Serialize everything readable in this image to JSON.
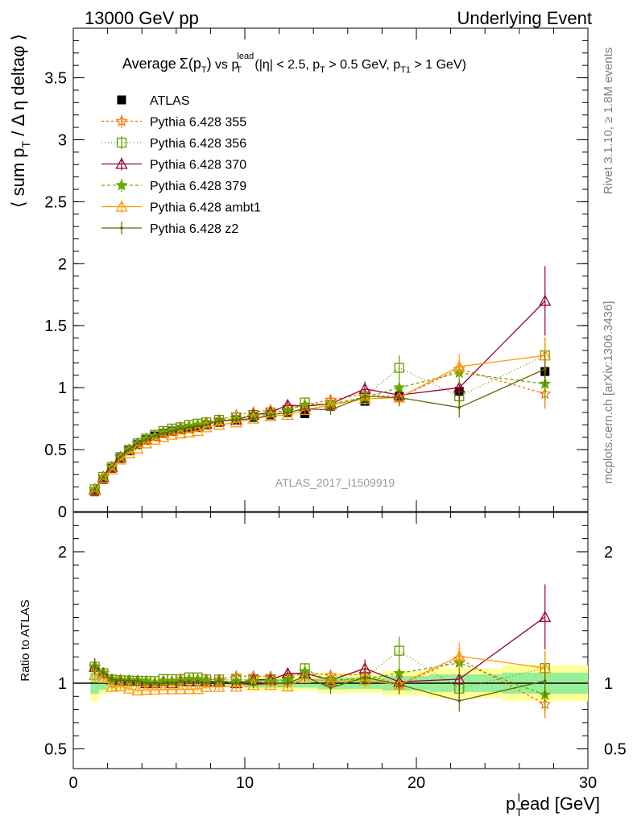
{
  "header": {
    "left": "13000 GeV pp",
    "right": "Underlying Event"
  },
  "side_labels": {
    "rivet": "Rivet 3.1.10, ≥ 1.8M events",
    "mcplots": "mcplots.cern.ch [arXiv:1306.3436]"
  },
  "watermark": "ATLAS_2017_I1509919",
  "chart_data": [
    {
      "type": "line",
      "title_parts": [
        "Average",
        "Σ(p",
        "T",
        ")",
        " vs p",
        "lead",
        "T",
        " (|η| < 2.5, p",
        "T",
        " > 0.5 GeV, p",
        "T1",
        " > 1 GeV)"
      ],
      "ylabel_parts": [
        "⟨ sum p",
        "T",
        " / Δ η deltaφ ⟩"
      ],
      "xlim": [
        0,
        30
      ],
      "ylim": [
        0,
        3.9
      ],
      "y_ticks": [
        "0",
        "0.5",
        "1",
        "1.5",
        "2",
        "2.5",
        "3",
        "3.5"
      ],
      "x": [
        1.25,
        1.75,
        2.25,
        2.75,
        3.25,
        3.75,
        4.25,
        4.75,
        5.25,
        5.75,
        6.25,
        6.75,
        7.25,
        7.75,
        8.5,
        9.5,
        10.5,
        11.5,
        12.5,
        13.5,
        15.0,
        17.0,
        19.0,
        22.5,
        27.5
      ],
      "series": [
        {
          "name": "ATLAS",
          "color": "#000000",
          "marker": "square-filled",
          "dash": "none",
          "values": [
            0.16,
            0.26,
            0.35,
            0.43,
            0.49,
            0.54,
            0.58,
            0.61,
            0.63,
            0.65,
            0.66,
            0.67,
            0.68,
            0.7,
            0.72,
            0.74,
            0.76,
            0.78,
            0.8,
            0.79,
            0.85,
            0.89,
            0.93,
            0.97,
            1.13
          ],
          "errors": [
            0.01,
            0.01,
            0.01,
            0.01,
            0.01,
            0.01,
            0.01,
            0.01,
            0.01,
            0.01,
            0.01,
            0.01,
            0.01,
            0.01,
            0.01,
            0.01,
            0.02,
            0.02,
            0.02,
            0.02,
            0.03,
            0.03,
            0.04,
            0.05,
            0.07
          ]
        },
        {
          "name": "Pythia 6.428 355",
          "color": "#ff6600",
          "marker": "star-open",
          "dash": "3,3",
          "values": [
            0.18,
            0.28,
            0.36,
            0.44,
            0.5,
            0.55,
            0.58,
            0.61,
            0.64,
            0.66,
            0.68,
            0.69,
            0.7,
            0.72,
            0.74,
            0.78,
            0.8,
            0.82,
            0.84,
            0.86,
            0.9,
            0.95,
            0.92,
            1.15,
            0.95
          ],
          "errors": [
            0.01,
            0.01,
            0.01,
            0.01,
            0.01,
            0.01,
            0.01,
            0.01,
            0.01,
            0.01,
            0.01,
            0.01,
            0.01,
            0.01,
            0.02,
            0.02,
            0.02,
            0.02,
            0.03,
            0.03,
            0.04,
            0.05,
            0.06,
            0.08,
            0.12
          ]
        },
        {
          "name": "Pythia 6.428 356",
          "color": "#669900",
          "marker": "square-open",
          "dash": "1,3",
          "values": [
            0.18,
            0.28,
            0.36,
            0.44,
            0.5,
            0.55,
            0.59,
            0.62,
            0.65,
            0.67,
            0.68,
            0.7,
            0.71,
            0.72,
            0.74,
            0.76,
            0.78,
            0.8,
            0.82,
            0.88,
            0.86,
            0.93,
            1.16,
            0.93,
            1.26
          ],
          "errors": [
            0.01,
            0.01,
            0.01,
            0.01,
            0.01,
            0.01,
            0.01,
            0.01,
            0.01,
            0.01,
            0.01,
            0.01,
            0.01,
            0.01,
            0.02,
            0.02,
            0.02,
            0.02,
            0.03,
            0.03,
            0.04,
            0.06,
            0.1,
            0.1,
            0.14
          ]
        },
        {
          "name": "Pythia 6.428 370",
          "color": "#990033",
          "marker": "triangle-open",
          "dash": "none",
          "values": [
            0.18,
            0.28,
            0.36,
            0.44,
            0.5,
            0.55,
            0.58,
            0.61,
            0.64,
            0.65,
            0.67,
            0.68,
            0.69,
            0.71,
            0.73,
            0.74,
            0.78,
            0.8,
            0.86,
            0.85,
            0.87,
            0.99,
            0.94,
            1.0,
            1.7
          ],
          "errors": [
            0.01,
            0.01,
            0.01,
            0.01,
            0.01,
            0.01,
            0.01,
            0.01,
            0.01,
            0.01,
            0.01,
            0.01,
            0.01,
            0.01,
            0.02,
            0.02,
            0.02,
            0.02,
            0.03,
            0.03,
            0.04,
            0.06,
            0.08,
            0.12,
            0.28
          ]
        },
        {
          "name": "Pythia 6.428 379",
          "color": "#66aa00",
          "marker": "star-filled",
          "dash": "4,3",
          "values": [
            0.18,
            0.28,
            0.36,
            0.44,
            0.5,
            0.55,
            0.59,
            0.61,
            0.64,
            0.66,
            0.67,
            0.69,
            0.7,
            0.71,
            0.73,
            0.75,
            0.77,
            0.79,
            0.82,
            0.86,
            0.87,
            0.92,
            1.0,
            1.12,
            1.03
          ],
          "errors": [
            0.01,
            0.01,
            0.01,
            0.01,
            0.01,
            0.01,
            0.01,
            0.01,
            0.01,
            0.01,
            0.01,
            0.01,
            0.01,
            0.01,
            0.02,
            0.02,
            0.02,
            0.02,
            0.03,
            0.03,
            0.04,
            0.05,
            0.07,
            0.09,
            0.14
          ]
        },
        {
          "name": "Pythia 6.428 ambt1",
          "color": "#ff9900",
          "marker": "triangle-open",
          "dash": "none",
          "values": [
            0.17,
            0.27,
            0.34,
            0.42,
            0.47,
            0.51,
            0.55,
            0.58,
            0.6,
            0.62,
            0.63,
            0.64,
            0.65,
            0.68,
            0.7,
            0.72,
            0.75,
            0.77,
            0.78,
            0.82,
            0.86,
            0.91,
            0.92,
            1.17,
            1.26
          ],
          "errors": [
            0.01,
            0.01,
            0.01,
            0.01,
            0.01,
            0.01,
            0.01,
            0.01,
            0.01,
            0.01,
            0.01,
            0.01,
            0.01,
            0.01,
            0.02,
            0.02,
            0.02,
            0.02,
            0.03,
            0.03,
            0.04,
            0.05,
            0.07,
            0.1,
            0.15
          ]
        },
        {
          "name": "Pythia 6.428 z2",
          "color": "#666600",
          "marker": "dot",
          "dash": "none",
          "values": [
            0.18,
            0.28,
            0.36,
            0.44,
            0.5,
            0.55,
            0.58,
            0.61,
            0.63,
            0.65,
            0.67,
            0.68,
            0.69,
            0.7,
            0.73,
            0.74,
            0.75,
            0.78,
            0.8,
            0.83,
            0.82,
            0.93,
            0.92,
            0.84,
            1.15
          ],
          "errors": [
            0.01,
            0.01,
            0.01,
            0.01,
            0.01,
            0.01,
            0.01,
            0.01,
            0.01,
            0.01,
            0.01,
            0.01,
            0.01,
            0.01,
            0.02,
            0.02,
            0.02,
            0.02,
            0.03,
            0.03,
            0.04,
            0.05,
            0.07,
            0.08,
            0.14
          ]
        }
      ]
    },
    {
      "type": "line",
      "ylabel": "Ratio to ATLAS",
      "xlabel_parts": [
        "p",
        "T",
        "l",
        "ead [GeV]"
      ],
      "xlim": [
        0,
        30
      ],
      "ylim": [
        0.35,
        2.3
      ],
      "x_ticks": [
        "0",
        "10",
        "20",
        "30"
      ],
      "y_ticks_left": [
        "0.5",
        "1",
        "2"
      ],
      "y_ticks_right": [
        "0.5",
        "1",
        "2"
      ],
      "ratio_by_series": "values / ATLAS"
    }
  ]
}
